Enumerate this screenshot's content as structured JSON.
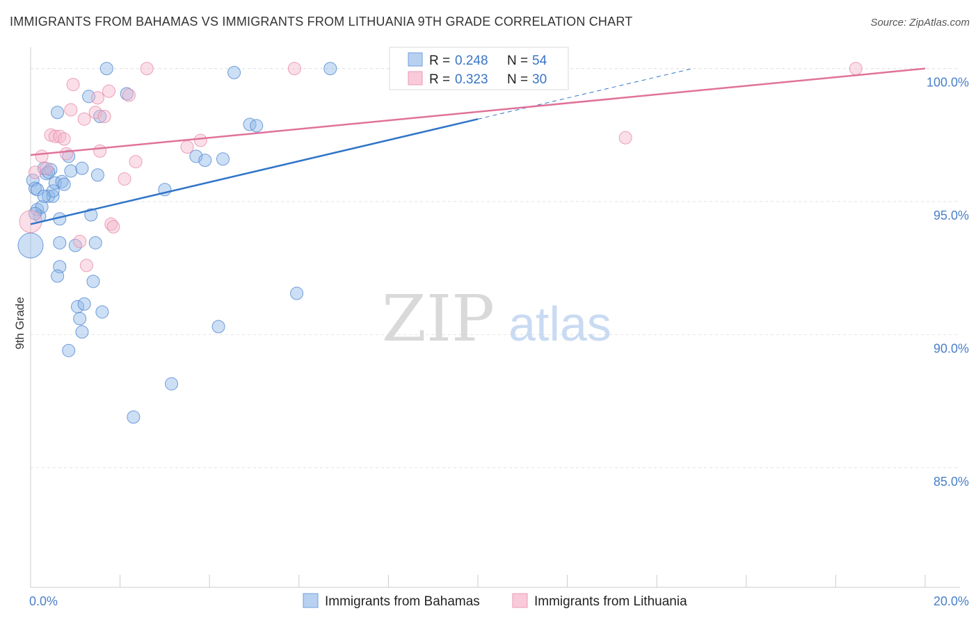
{
  "title": "IMMIGRANTS FROM BAHAMAS VS IMMIGRANTS FROM LITHUANIA 9TH GRADE CORRELATION CHART",
  "source": "Source: ZipAtlas.com",
  "watermark": {
    "zip": "ZIP",
    "atlas": "atlas"
  },
  "colors": {
    "blue": "#8fb8e8",
    "blue_stroke": "#4f86cf",
    "blue_line": "#2f74c8",
    "pink": "#f4b8cb",
    "pink_stroke": "#e88aa8",
    "pink_line": "#e0729a",
    "grid": "#e2e2e2",
    "tick_text": "#4a7fc8"
  },
  "legend": {
    "r_label": "R =",
    "n_label": "N =",
    "rows": [
      {
        "r": "0.248",
        "n": "54",
        "color": "blue"
      },
      {
        "r": "0.323",
        "n": "30",
        "color": "pink"
      }
    ]
  },
  "chart_data": {
    "type": "scatter",
    "title": "IMMIGRANTS FROM BAHAMAS VS IMMIGRANTS FROM LITHUANIA 9TH GRADE CORRELATION CHART",
    "xlabel": "",
    "ylabel": "9th Grade",
    "xlim": [
      0,
      20
    ],
    "ylim": [
      80.5,
      100.8
    ],
    "x_tick_labels": [
      {
        "value": 0,
        "label": "0.0%"
      },
      {
        "value": 20,
        "label": "20.0%"
      }
    ],
    "x_minor_ticks": [
      2,
      4,
      6,
      8,
      10,
      12,
      14,
      16,
      18,
      20
    ],
    "y_ticks": [
      {
        "value": 85,
        "label": "85.0%"
      },
      {
        "value": 90,
        "label": "90.0%"
      },
      {
        "value": 95,
        "label": "95.0%"
      },
      {
        "value": 100,
        "label": "100.0%"
      }
    ],
    "grid": true,
    "legend_position": "top-center",
    "series": [
      {
        "name": "Immigrants from Bahamas",
        "color": "blue",
        "trend": {
          "x0": 0,
          "y0": 94.15,
          "x1": 10,
          "y1": 98.1,
          "dash_x1": 14.8,
          "dash_y1": 100.0
        },
        "points": [
          [
            0.0,
            93.35,
            18
          ],
          [
            0.05,
            95.8,
            9
          ],
          [
            0.1,
            95.5,
            9
          ],
          [
            0.15,
            94.7,
            9
          ],
          [
            0.2,
            94.45,
            9
          ],
          [
            0.25,
            94.8,
            9
          ],
          [
            0.3,
            96.25,
            9
          ],
          [
            0.35,
            96.05,
            9
          ],
          [
            0.4,
            95.2,
            9
          ],
          [
            0.45,
            96.2,
            9
          ],
          [
            0.5,
            95.2,
            9
          ],
          [
            0.5,
            95.4,
            9
          ],
          [
            0.55,
            95.7,
            9
          ],
          [
            0.6,
            98.35,
            9
          ],
          [
            0.65,
            94.35,
            9
          ],
          [
            0.7,
            95.75,
            9
          ],
          [
            0.75,
            95.65,
            9
          ],
          [
            0.85,
            96.7,
            9
          ],
          [
            0.9,
            96.15,
            9
          ],
          [
            0.65,
            93.45,
            9
          ],
          [
            0.65,
            92.55,
            9
          ],
          [
            0.6,
            92.2,
            9
          ],
          [
            1.0,
            93.35,
            9
          ],
          [
            1.15,
            96.25,
            9
          ],
          [
            1.3,
            98.95,
            9
          ],
          [
            1.35,
            94.5,
            9
          ],
          [
            1.4,
            92.0,
            9
          ],
          [
            1.45,
            93.45,
            9
          ],
          [
            1.5,
            96.0,
            9
          ],
          [
            1.55,
            98.2,
            9
          ],
          [
            1.7,
            100.0,
            9
          ],
          [
            1.05,
            91.05,
            9
          ],
          [
            1.2,
            91.15,
            9
          ],
          [
            1.1,
            90.6,
            9
          ],
          [
            1.15,
            90.1,
            9
          ],
          [
            1.6,
            90.85,
            9
          ],
          [
            0.85,
            89.4,
            9
          ],
          [
            2.15,
            99.05,
            9
          ],
          [
            2.3,
            86.9,
            9
          ],
          [
            3.0,
            95.45,
            9
          ],
          [
            3.15,
            88.15,
            9
          ],
          [
            3.7,
            96.7,
            9
          ],
          [
            3.9,
            96.55,
            9
          ],
          [
            4.2,
            90.3,
            9
          ],
          [
            4.3,
            96.6,
            9
          ],
          [
            4.55,
            99.85,
            9
          ],
          [
            4.9,
            97.9,
            9
          ],
          [
            5.05,
            97.85,
            9
          ],
          [
            5.95,
            91.55,
            9
          ],
          [
            6.7,
            100.0,
            9
          ],
          [
            0.1,
            94.55,
            9
          ],
          [
            0.15,
            95.45,
            9
          ],
          [
            0.4,
            96.1,
            9
          ],
          [
            0.3,
            95.2,
            9
          ]
        ]
      },
      {
        "name": "Immigrants from Lithuania",
        "color": "pink",
        "trend": {
          "x0": 0,
          "y0": 96.75,
          "x1": 20,
          "y1": 100.0
        },
        "points": [
          [
            0.0,
            94.25,
            16
          ],
          [
            0.1,
            96.1,
            9
          ],
          [
            0.25,
            96.7,
            9
          ],
          [
            0.35,
            96.25,
            9
          ],
          [
            0.45,
            97.5,
            9
          ],
          [
            0.55,
            97.45,
            9
          ],
          [
            0.65,
            97.45,
            9
          ],
          [
            0.75,
            97.35,
            9
          ],
          [
            0.8,
            96.8,
            9
          ],
          [
            0.9,
            98.45,
            9
          ],
          [
            0.95,
            99.4,
            9
          ],
          [
            1.2,
            98.1,
            9
          ],
          [
            1.45,
            98.35,
            9
          ],
          [
            1.5,
            98.9,
            9
          ],
          [
            1.55,
            96.9,
            9
          ],
          [
            1.65,
            98.2,
            9
          ],
          [
            1.75,
            99.15,
            9
          ],
          [
            1.8,
            94.15,
            9
          ],
          [
            1.85,
            94.05,
            9
          ],
          [
            2.1,
            95.85,
            9
          ],
          [
            2.2,
            99.0,
            9
          ],
          [
            2.35,
            96.5,
            9
          ],
          [
            2.6,
            100.0,
            9
          ],
          [
            1.1,
            93.5,
            9
          ],
          [
            1.25,
            92.6,
            9
          ],
          [
            3.5,
            97.05,
            9
          ],
          [
            3.8,
            97.3,
            9
          ],
          [
            5.9,
            100.0,
            9
          ],
          [
            13.3,
            97.4,
            9
          ],
          [
            18.45,
            100.0,
            9
          ]
        ]
      }
    ]
  }
}
